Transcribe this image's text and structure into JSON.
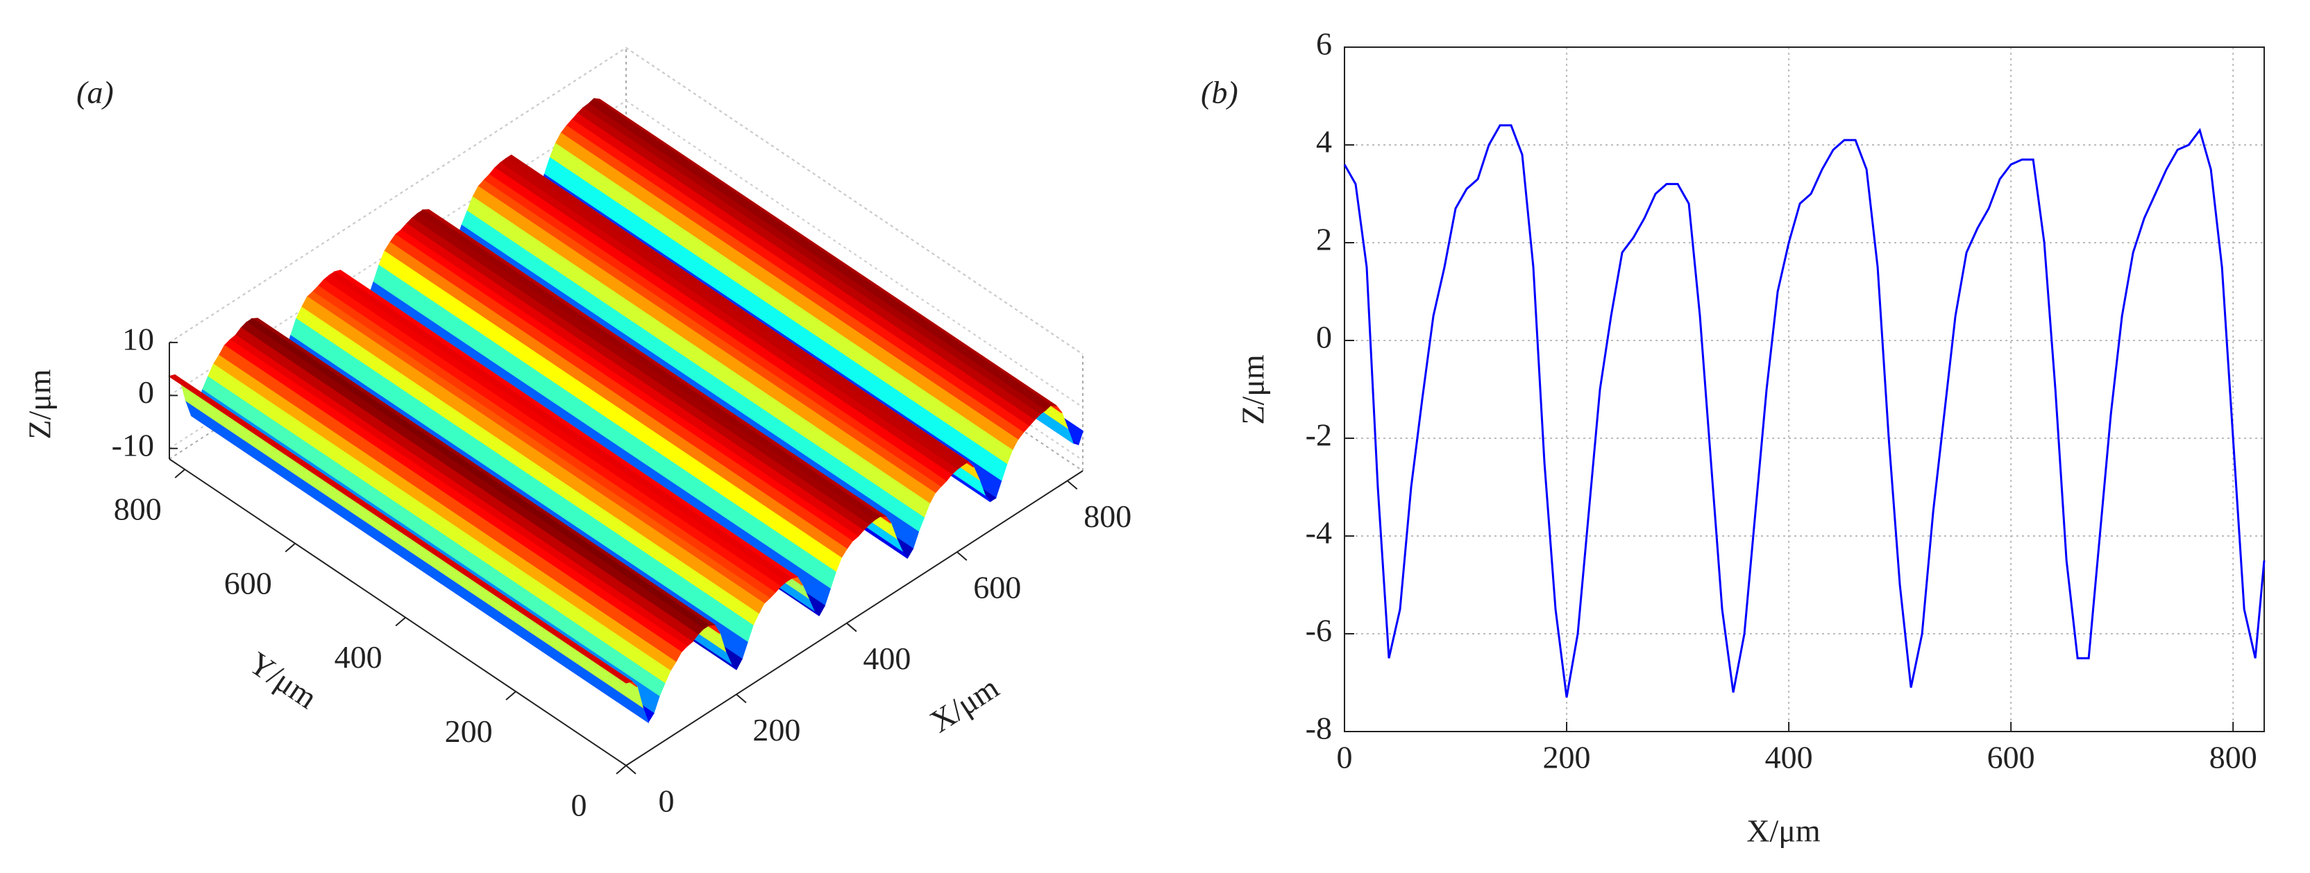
{
  "chart_data": [
    {
      "type": "surface",
      "label": "(a)",
      "xlabel": "X/μm",
      "ylabel": "Y/μm",
      "zlabel": "Z/μm",
      "xlim": [
        0,
        828
      ],
      "ylim": [
        0,
        828
      ],
      "zlim": [
        -12,
        10
      ],
      "xticks": [
        0,
        200,
        400,
        600,
        800
      ],
      "yticks": [
        0,
        200,
        400,
        600,
        800
      ],
      "zticks": [
        -10,
        0,
        10
      ]
    },
    {
      "type": "line",
      "label": "(b)",
      "xlabel": "X/μm",
      "ylabel": "Z/μm",
      "x": [
        0,
        10,
        20,
        30,
        40,
        50,
        60,
        70,
        80,
        90,
        100,
        110,
        120,
        130,
        140,
        150,
        160,
        170,
        180,
        190,
        200,
        210,
        220,
        230,
        240,
        250,
        260,
        270,
        280,
        290,
        300,
        310,
        320,
        330,
        340,
        350,
        360,
        370,
        380,
        390,
        400,
        410,
        420,
        430,
        440,
        450,
        460,
        470,
        480,
        490,
        500,
        510,
        520,
        530,
        540,
        550,
        560,
        570,
        580,
        590,
        600,
        610,
        620,
        630,
        640,
        650,
        660,
        670,
        680,
        690,
        700,
        710,
        720,
        730,
        740,
        750,
        760,
        770,
        780,
        790,
        800,
        810,
        820,
        828
      ],
      "series": [
        {
          "color": "#0000ff",
          "values": [
            3.6,
            3.2,
            1.5,
            -3,
            -6.5,
            -5.5,
            -3,
            -1.2,
            0.5,
            1.5,
            2.7,
            3.1,
            3.3,
            4.0,
            4.4,
            4.4,
            3.8,
            1.5,
            -2.5,
            -5.5,
            -7.3,
            -6.0,
            -3.5,
            -1.0,
            0.5,
            1.8,
            2.1,
            2.5,
            3.0,
            3.2,
            3.2,
            2.8,
            0.5,
            -2.5,
            -5.5,
            -7.2,
            -6.0,
            -3.5,
            -1.0,
            1.0,
            2.0,
            2.8,
            3.0,
            3.5,
            3.9,
            4.1,
            4.1,
            3.5,
            1.5,
            -2.0,
            -5.0,
            -7.1,
            -6.0,
            -3.5,
            -1.5,
            0.5,
            1.8,
            2.3,
            2.7,
            3.3,
            3.6,
            3.7,
            3.7,
            2.0,
            -1.0,
            -4.5,
            -6.5,
            -6.5,
            -4.0,
            -1.5,
            0.5,
            1.8,
            2.5,
            3.0,
            3.5,
            3.9,
            4.0,
            4.3,
            3.5,
            1.5,
            -2.0,
            -5.5,
            -6.5,
            -4.5
          ]
        }
      ],
      "xlim": [
        0,
        828
      ],
      "ylim": [
        -8,
        6
      ],
      "xticks": [
        0,
        200,
        400,
        600,
        800
      ],
      "yticks": [
        -8,
        -6,
        -4,
        -2,
        0,
        2,
        4,
        6
      ],
      "grid": true
    }
  ]
}
